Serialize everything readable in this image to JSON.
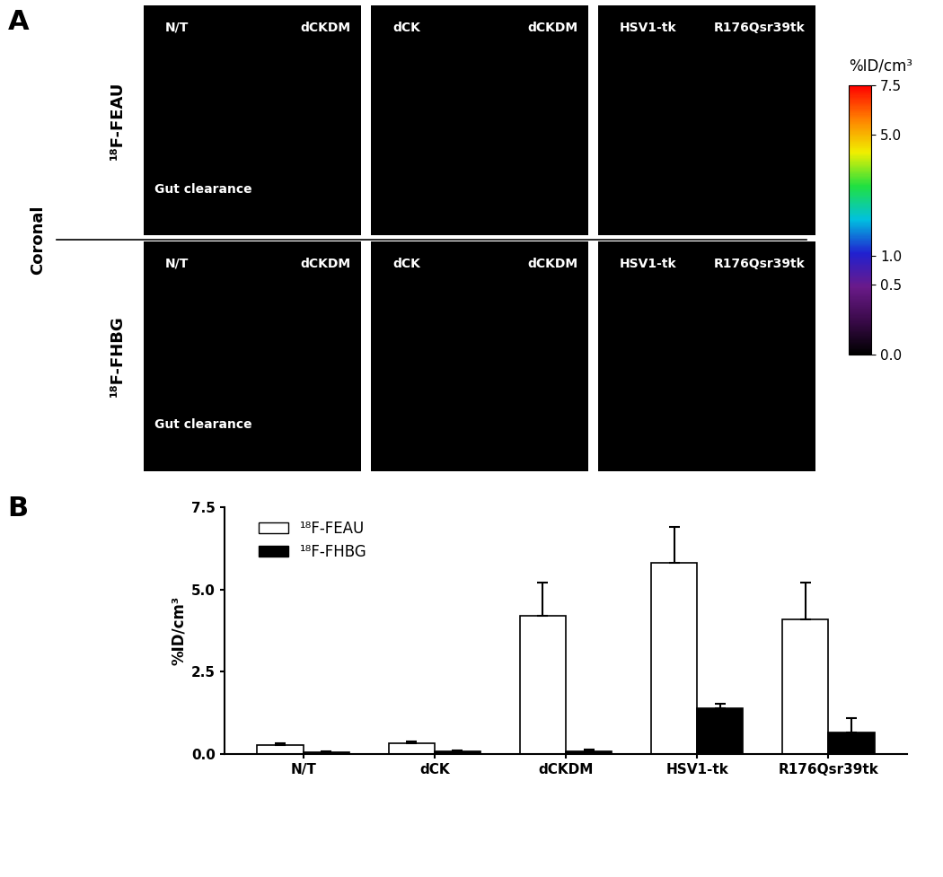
{
  "panel_a": {
    "panel_label": "A",
    "orientation_label": "Coronal",
    "rows": [
      {
        "tracer": "¹⁸F-FEAU",
        "panels": [
          {
            "left": "N/T",
            "right": "dCKDM",
            "note": "Gut clearance"
          },
          {
            "left": "dCK",
            "right": "dCKDM"
          },
          {
            "left": "HSV1-tk",
            "right": "R176Qsr39tk"
          }
        ]
      },
      {
        "tracer": "¹⁸F-FHBG",
        "panels": [
          {
            "left": "N/T",
            "right": "dCKDM",
            "note": "Gut clearance"
          },
          {
            "left": "dCK",
            "right": "dCKDM"
          },
          {
            "left": "HSV1-tk",
            "right": "R176Qsr39tk"
          }
        ]
      }
    ],
    "colorbar": {
      "title": "%ID/cm³",
      "range": [
        0,
        7.5
      ],
      "ticks": [
        {
          "value": 0,
          "label": "0.0"
        },
        {
          "value": 0.5,
          "label": "0.5"
        },
        {
          "value": 1,
          "label": "1.0"
        },
        {
          "value": 5,
          "label": "5.0"
        },
        {
          "value": 7.5,
          "label": "7.5"
        }
      ]
    }
  },
  "chart_data": {
    "panel_label": "B",
    "type": "bar",
    "y_label": "%ID/cm³",
    "categories": [
      "N/T",
      "dCK",
      "dCKDM",
      "HSV1-tk",
      "R176Qsr39tk"
    ],
    "series": [
      {
        "name": "¹⁸F-FEAU",
        "color": "#ffffff",
        "values": [
          0.27,
          0.33,
          4.2,
          5.8,
          4.1
        ],
        "errors": [
          0.07,
          0.07,
          1.0,
          1.1,
          1.1
        ]
      },
      {
        "name": "¹⁸F-FHBG",
        "color": "#000000",
        "values": [
          0.06,
          0.08,
          0.1,
          1.4,
          0.65
        ],
        "errors": [
          0.02,
          0.03,
          0.03,
          0.12,
          0.45
        ]
      }
    ],
    "ylim": [
      0,
      7.5
    ],
    "yticks": [
      {
        "value": 0,
        "label": "0.0"
      },
      {
        "value": 2.5,
        "label": "2.5"
      },
      {
        "value": 5,
        "label": "5.0"
      },
      {
        "value": 7.5,
        "label": "7.5"
      }
    ],
    "legend": "upper left"
  }
}
